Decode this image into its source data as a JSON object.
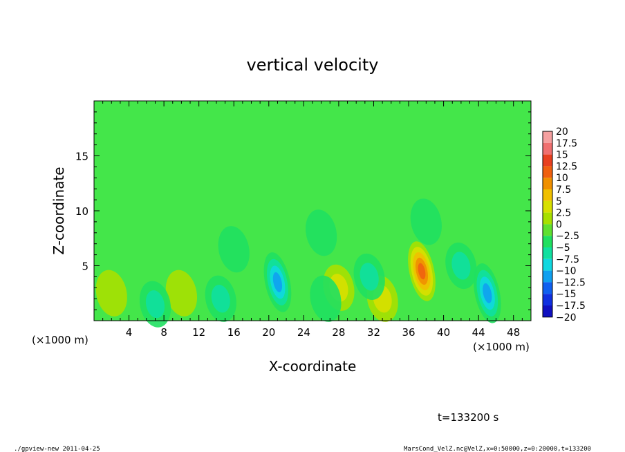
{
  "chart_data": {
    "type": "heatmap",
    "title": "vertical velocity",
    "xlabel": "X-coordinate",
    "ylabel": "Z-coordinate",
    "x_unit_left": "(×1000 m)",
    "x_unit_right": "(×1000 m)",
    "xlim": [
      0,
      50
    ],
    "ylim": [
      0,
      20
    ],
    "x_ticks": [
      4,
      8,
      12,
      16,
      20,
      24,
      28,
      32,
      36,
      40,
      44,
      48
    ],
    "y_ticks": [
      5,
      10,
      15
    ],
    "colorbar": {
      "levels": [
        20,
        17.5,
        15,
        12.5,
        10,
        7.5,
        5,
        2.5,
        0,
        -2.5,
        -5,
        -7.5,
        -10,
        -12.5,
        -15,
        -17.5,
        -20
      ],
      "colors": [
        "#f5a0a0",
        "#f07070",
        "#e84020",
        "#f06010",
        "#f09000",
        "#f0c000",
        "#d8e000",
        "#a8e000",
        "#60e030",
        "#20e060",
        "#10e0a0",
        "#10d8e0",
        "#10a0f0",
        "#1060f0",
        "#1030e0",
        "#1010c0",
        "#6010b0"
      ],
      "label_texts": [
        "20",
        "17.5",
        "15",
        "12.5",
        "10",
        "7.5",
        "5",
        "2.5",
        "0",
        "−2.5",
        "−5",
        "−7.5",
        "−10",
        "−12.5",
        "−15",
        "−17.5",
        "−20"
      ]
    },
    "features": [
      {
        "x": 21,
        "z": 3.5,
        "value": -11
      },
      {
        "x": 37.5,
        "z": 4.5,
        "value": 12
      },
      {
        "x": 45,
        "z": 2.5,
        "value": -9
      },
      {
        "x": 2,
        "z": 2.5,
        "value": 3
      },
      {
        "x": 10,
        "z": 2.5,
        "value": 3
      },
      {
        "x": 28,
        "z": 3,
        "value": 4
      },
      {
        "x": 33,
        "z": 2,
        "value": 4
      },
      {
        "x": 7,
        "z": 1.5,
        "value": -4
      },
      {
        "x": 14.5,
        "z": 2,
        "value": -4
      },
      {
        "x": 26.5,
        "z": 2,
        "value": -3
      },
      {
        "x": 31.5,
        "z": 4,
        "value": -4
      },
      {
        "x": 42,
        "z": 5,
        "value": -4
      },
      {
        "x": 26,
        "z": 8,
        "value": -2
      },
      {
        "x": 16,
        "z": 6.5,
        "value": -2
      },
      {
        "x": 38,
        "z": 9,
        "value": -2
      }
    ],
    "background_value": 0.3
  },
  "time_label": "t=133200 s",
  "footer": {
    "left": "./gpview-new  2011-04-25",
    "right": "MarsCond_VelZ.nc@VelZ,x=0:50000,z=0:20000,t=133200"
  }
}
